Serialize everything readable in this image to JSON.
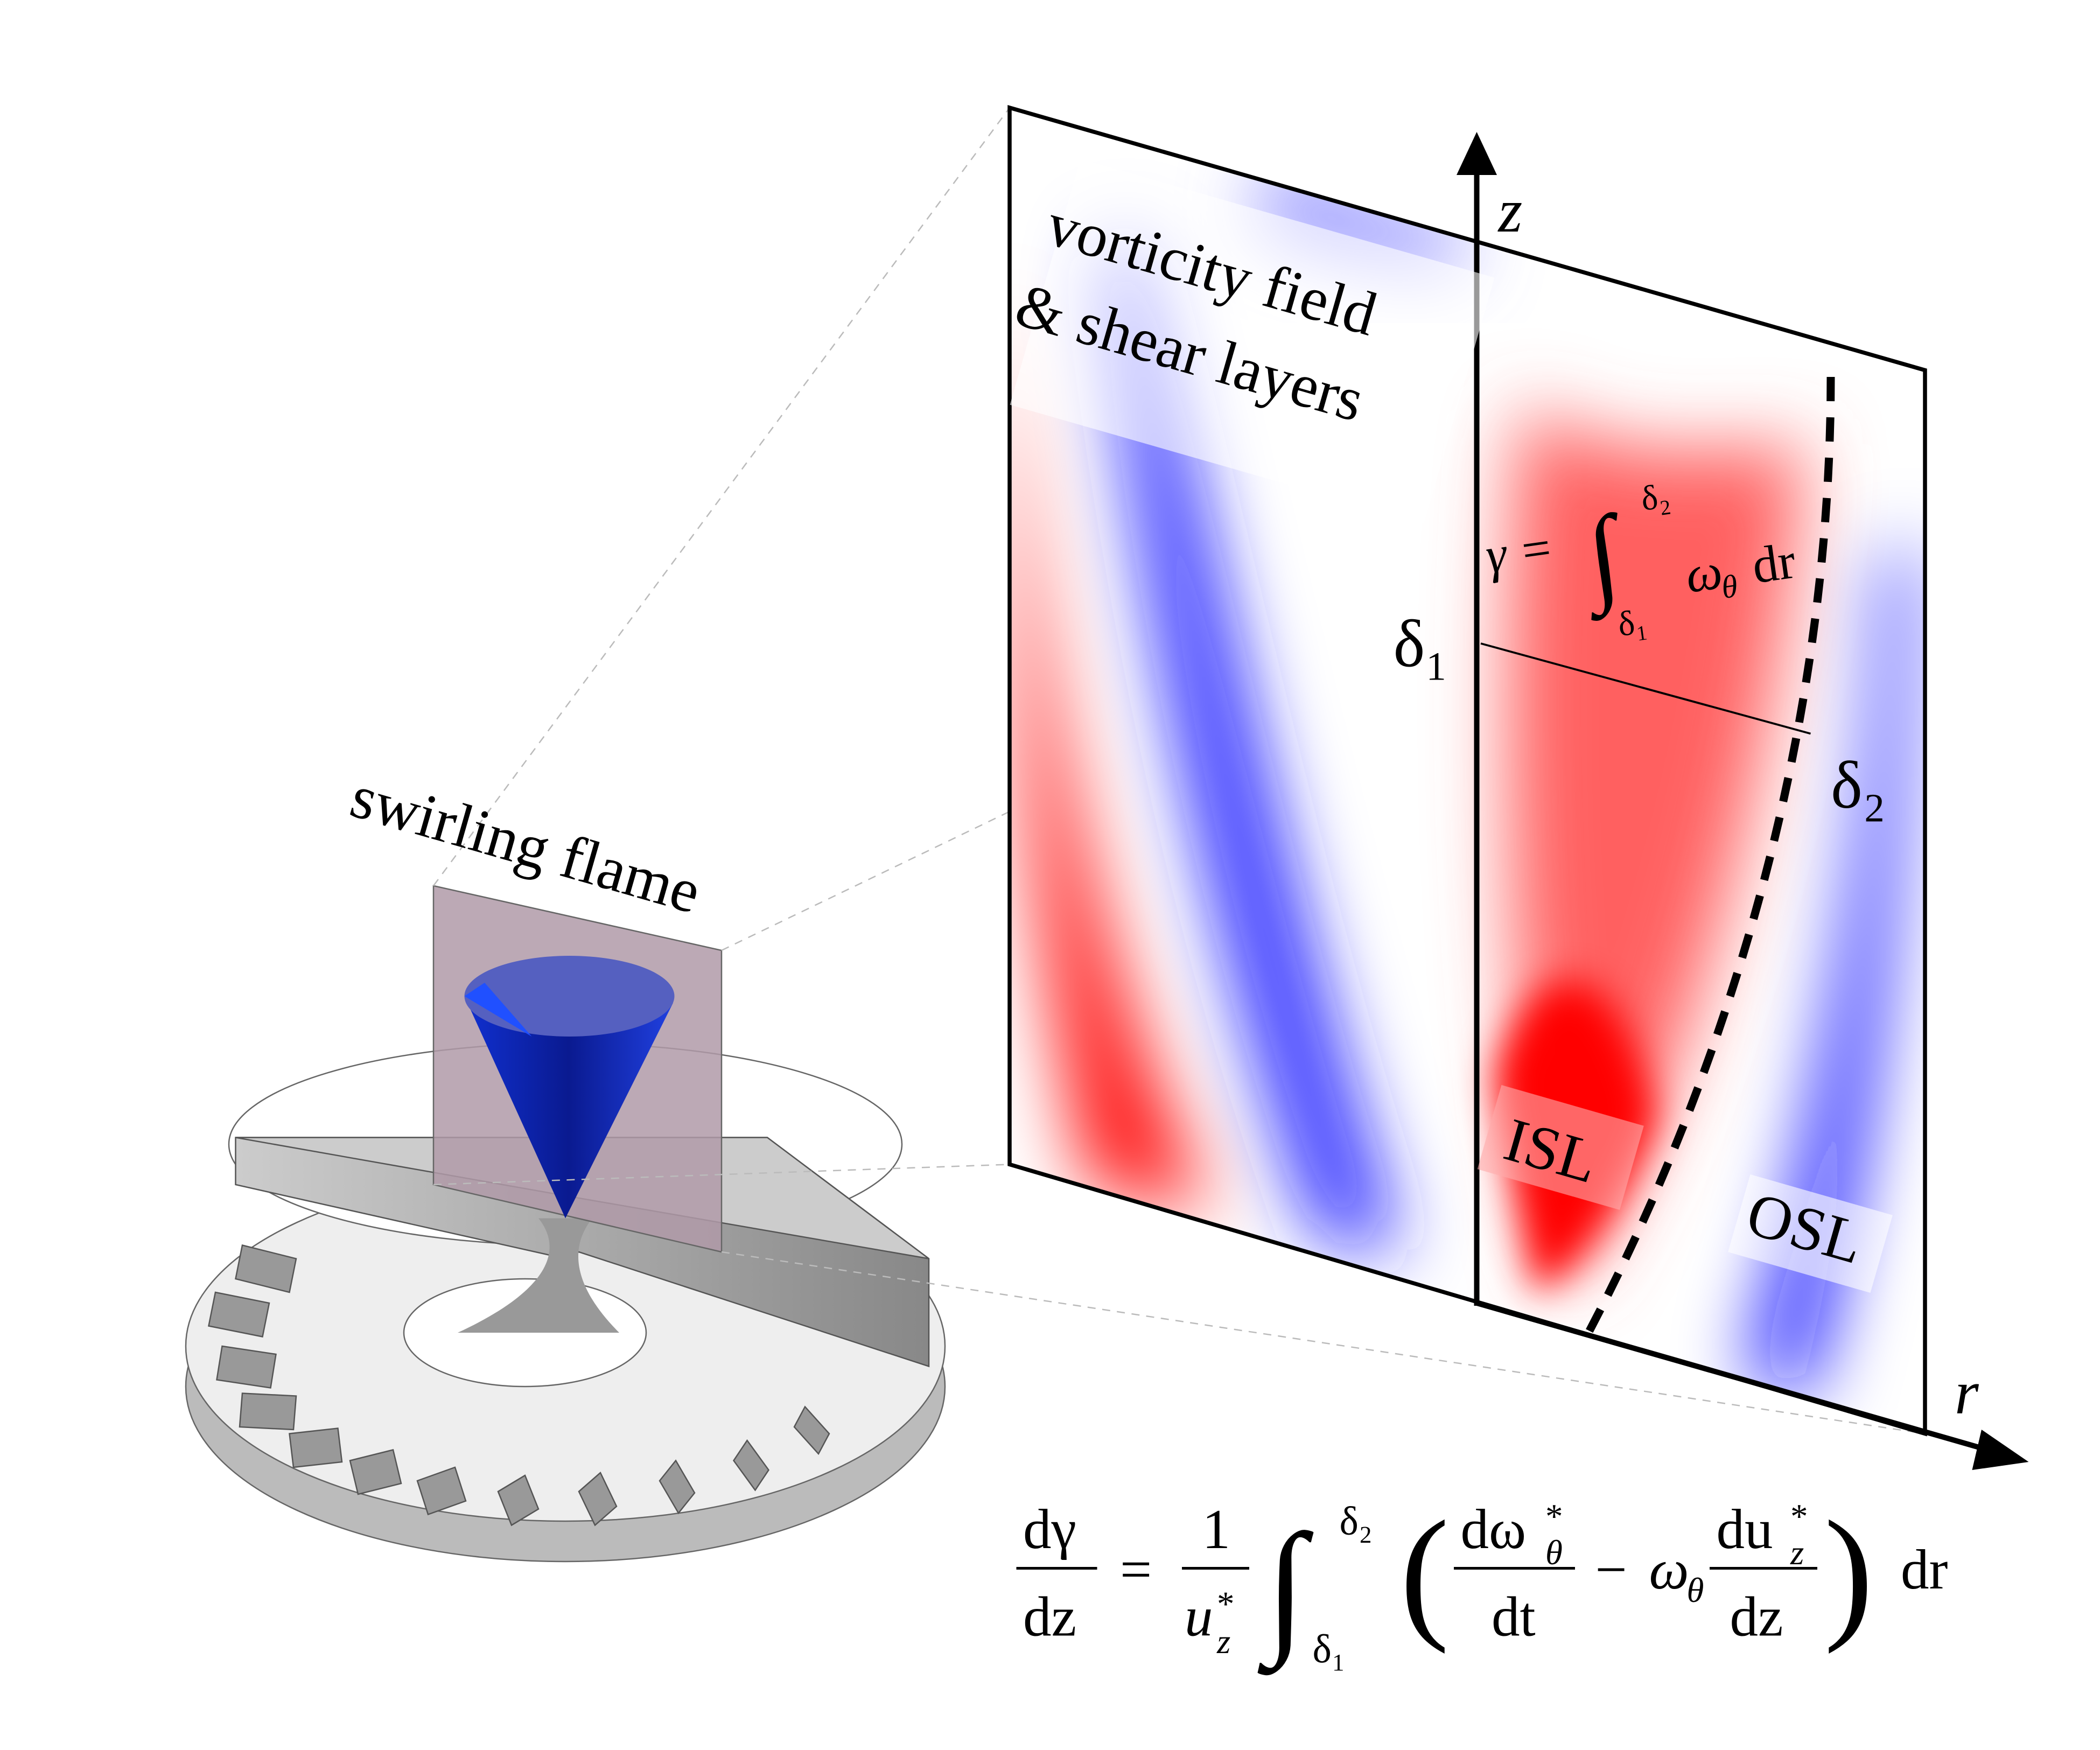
{
  "labels": {
    "vorticity": "vorticity field",
    "shear": "& shear layers",
    "flame": "swirling flame",
    "z": "z",
    "r": "r",
    "delta1": "δ₁",
    "delta2": "δ₂",
    "isl": "ISL",
    "osl": "OSL"
  },
  "gamma_eq": {
    "lhs": "γ =",
    "integral": "∫",
    "upper": "δ₂",
    "lower": "δ₁",
    "omega": "ω",
    "sub": "θ",
    "tail": "dr"
  },
  "main_eq": {
    "num1": "dγ",
    "den1": "dz",
    "eq": "=",
    "num2": "1",
    "den2": "u",
    "den2sub": "z",
    "den2sup": "*",
    "integral": "∫",
    "upper": "δ₂",
    "lower": "δ₁",
    "lparen": "(",
    "num3": "dω",
    "num3sub": "θ",
    "num3sup": "*",
    "den3": "dt",
    "minus": "−",
    "omega": "ω",
    "omegasub": "θ",
    "num4": "du",
    "num4sub": "z",
    "num4sup": "*",
    "den4": "dz",
    "rparen": ")",
    "tail": "dr"
  }
}
